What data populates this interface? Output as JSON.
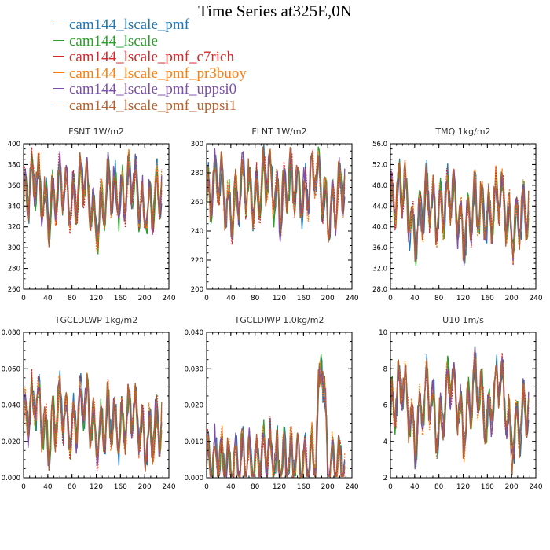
{
  "title": "Time Series at325E,0N",
  "colors": {
    "cam144_lscale_pmf": "#1f77b4",
    "cam144_lscale": "#2ca02c",
    "cam144_lscale_pmf_c7rich": "#d62728",
    "cam144_lscale_pmf_pr3buoy": "#ff7f0e",
    "cam144_lscale_pmf_uppsi0": "#7e4fa8",
    "cam144_lscale_pmf_uppsi1": "#b5612f"
  },
  "legend": [
    "cam144_lscale_pmf",
    "cam144_lscale",
    "cam144_lscale_pmf_c7rich",
    "cam144_lscale_pmf_pr3buoy",
    "cam144_lscale_pmf_uppsi0",
    "cam144_lscale_pmf_uppsi1"
  ],
  "chart_data": [
    {
      "type": "line",
      "title": "FSNT   1W/m2",
      "xlim": [
        0,
        240
      ],
      "xticks": [
        "0",
        "40",
        "80",
        "120",
        "160",
        "200",
        "240"
      ],
      "ylim": [
        260,
        400
      ],
      "yticks": [
        "260",
        "280",
        "300",
        "320",
        "340",
        "360",
        "380",
        "400"
      ],
      "x": [
        0,
        20,
        40,
        60,
        80,
        100,
        120,
        140,
        160,
        180,
        200,
        225
      ],
      "values": [
        345,
        370,
        330,
        365,
        340,
        372,
        320,
        360,
        345,
        368,
        330,
        360
      ],
      "series": [
        "cam144_lscale_pmf",
        "cam144_lscale",
        "cam144_lscale_pmf_c7rich",
        "cam144_lscale_pmf_pr3buoy",
        "cam144_lscale_pmf_uppsi0",
        "cam144_lscale_pmf_uppsi1"
      ]
    },
    {
      "type": "line",
      "title": "FLNT   1W/m2",
      "xlim": [
        0,
        240
      ],
      "xticks": [
        "0",
        "40",
        "80",
        "120",
        "160",
        "200",
        "240"
      ],
      "ylim": [
        200,
        300
      ],
      "yticks": [
        "200",
        "220",
        "240",
        "260",
        "280",
        "300"
      ],
      "x": [
        0,
        20,
        40,
        60,
        80,
        100,
        120,
        140,
        160,
        180,
        200,
        225
      ],
      "values": [
        262,
        278,
        250,
        275,
        260,
        282,
        255,
        278,
        262,
        285,
        250,
        272
      ],
      "series": [
        "cam144_lscale_pmf",
        "cam144_lscale",
        "cam144_lscale_pmf_c7rich",
        "cam144_lscale_pmf_pr3buoy",
        "cam144_lscale_pmf_uppsi0",
        "cam144_lscale_pmf_uppsi1"
      ]
    },
    {
      "type": "line",
      "title": "TMQ   1kg/m2",
      "xlim": [
        0,
        240
      ],
      "xticks": [
        "0",
        "40",
        "80",
        "120",
        "160",
        "200",
        "240"
      ],
      "ylim": [
        28,
        56
      ],
      "yticks": [
        "28.0",
        "32.0",
        "36.0",
        "40.0",
        "44.0",
        "48.0",
        "52.0",
        "56.0"
      ],
      "x": [
        0,
        20,
        40,
        60,
        80,
        100,
        120,
        140,
        160,
        180,
        200,
        225
      ],
      "values": [
        44,
        48,
        38,
        46,
        42,
        47,
        38,
        45,
        41,
        47,
        39,
        44
      ],
      "series": [
        "cam144_lscale_pmf",
        "cam144_lscale",
        "cam144_lscale_pmf_c7rich",
        "cam144_lscale_pmf_pr3buoy",
        "cam144_lscale_pmf_uppsi0",
        "cam144_lscale_pmf_uppsi1"
      ]
    },
    {
      "type": "line",
      "title": "TGCLDLWP   1kg/m2",
      "xlim": [
        0,
        240
      ],
      "xticks": [
        "0",
        "40",
        "80",
        "120",
        "160",
        "200",
        "240"
      ],
      "ylim": [
        0,
        0.08
      ],
      "yticks": [
        "0.000",
        "0.020",
        "0.040",
        "0.060",
        "0.080"
      ],
      "x": [
        0,
        20,
        40,
        60,
        80,
        100,
        120,
        140,
        160,
        180,
        200,
        225
      ],
      "values": [
        0.03,
        0.045,
        0.02,
        0.04,
        0.025,
        0.045,
        0.02,
        0.035,
        0.025,
        0.04,
        0.02,
        0.03
      ],
      "series": [
        "cam144_lscale_pmf",
        "cam144_lscale",
        "cam144_lscale_pmf_c7rich",
        "cam144_lscale_pmf_pr3buoy",
        "cam144_lscale_pmf_uppsi0",
        "cam144_lscale_pmf_uppsi1"
      ]
    },
    {
      "type": "line",
      "title": "TGCLDIWP   1.0kg/m2",
      "xlim": [
        0,
        240
      ],
      "xticks": [
        "0",
        "40",
        "80",
        "120",
        "160",
        "200",
        "240"
      ],
      "ylim": [
        0,
        0.04
      ],
      "yticks": [
        "0.000",
        "0.010",
        "0.020",
        "0.030",
        "0.040"
      ],
      "x": [
        0,
        20,
        40,
        60,
        80,
        100,
        120,
        140,
        160,
        180,
        190,
        200,
        225
      ],
      "values": [
        0.004,
        0.006,
        0.002,
        0.005,
        0.003,
        0.008,
        0.004,
        0.006,
        0.003,
        0.007,
        0.036,
        0.004,
        0.003
      ],
      "series": [
        "cam144_lscale_pmf",
        "cam144_lscale",
        "cam144_lscale_pmf_c7rich",
        "cam144_lscale_pmf_pr3buoy",
        "cam144_lscale_pmf_uppsi0",
        "cam144_lscale_pmf_uppsi1"
      ]
    },
    {
      "type": "line",
      "title": "U10   1m/s",
      "xlim": [
        0,
        240
      ],
      "xticks": [
        "0",
        "40",
        "80",
        "120",
        "160",
        "200",
        "240"
      ],
      "ylim": [
        2,
        10
      ],
      "yticks": [
        "2",
        "4",
        "6",
        "8",
        "10"
      ],
      "x": [
        0,
        20,
        40,
        60,
        80,
        100,
        120,
        140,
        160,
        180,
        200,
        225
      ],
      "values": [
        5.5,
        7.5,
        4,
        7,
        4.5,
        7.8,
        4.5,
        7.5,
        5,
        7.8,
        4,
        6
      ],
      "series": [
        "cam144_lscale_pmf",
        "cam144_lscale",
        "cam144_lscale_pmf_c7rich",
        "cam144_lscale_pmf_pr3buoy",
        "cam144_lscale_pmf_uppsi0",
        "cam144_lscale_pmf_uppsi1"
      ]
    }
  ]
}
